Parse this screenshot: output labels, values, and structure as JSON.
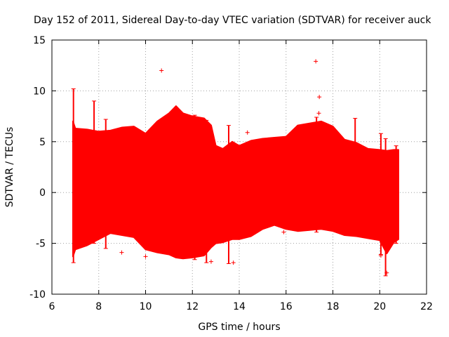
{
  "chart_data": {
    "type": "scatter",
    "title": "Day 152 of 2011, Sidereal Day-to-day VTEC variation (SDTVAR) for receiver auck",
    "xlabel": "GPS time / hours",
    "ylabel": "SDTVAR / TECUs",
    "xlim": [
      6,
      22
    ],
    "ylim": [
      -10,
      15
    ],
    "x_ticks": [
      6,
      8,
      10,
      12,
      14,
      16,
      18,
      20,
      22
    ],
    "y_ticks": [
      -10,
      -5,
      0,
      5,
      10,
      15
    ],
    "grid": true,
    "marker": "+",
    "color": "#ff0000",
    "envelope": {
      "x": [
        6.9,
        7.0,
        7.5,
        8.0,
        8.5,
        9.0,
        9.5,
        10.0,
        10.5,
        11.0,
        11.3,
        11.6,
        12.0,
        12.5,
        12.8,
        13.0,
        13.3,
        13.7,
        14.0,
        14.5,
        15.0,
        15.5,
        16.0,
        16.5,
        17.0,
        17.5,
        18.0,
        18.5,
        19.0,
        19.5,
        20.0,
        20.3,
        20.6,
        20.8
      ],
      "upper": [
        7.0,
        6.3,
        6.2,
        6.0,
        6.1,
        6.4,
        6.5,
        5.8,
        7.0,
        7.8,
        8.5,
        7.8,
        7.5,
        7.3,
        6.6,
        4.6,
        4.3,
        5.0,
        4.6,
        5.1,
        5.3,
        5.4,
        5.5,
        6.6,
        6.8,
        7.0,
        6.5,
        5.2,
        4.9,
        4.3,
        4.2,
        4.1,
        4.2,
        4.2
      ],
      "lower": [
        -6.3,
        -5.6,
        -5.2,
        -4.6,
        -4.0,
        -4.2,
        -4.4,
        -5.6,
        -5.9,
        -6.1,
        -6.4,
        -6.5,
        -6.4,
        -6.2,
        -5.4,
        -5.0,
        -4.9,
        -4.6,
        -4.6,
        -4.3,
        -3.6,
        -3.2,
        -3.6,
        -3.8,
        -3.7,
        -3.6,
        -3.8,
        -4.2,
        -4.3,
        -4.5,
        -4.7,
        -6.0,
        -4.9,
        -4.6
      ]
    },
    "spikes": [
      {
        "x": 6.92,
        "low": -6.9,
        "high": 10.2
      },
      {
        "x": 7.8,
        "low": -5.0,
        "high": 9.0
      },
      {
        "x": 8.3,
        "low": -5.5,
        "high": 7.2
      },
      {
        "x": 12.1,
        "low": -6.6,
        "high": 7.6
      },
      {
        "x": 12.6,
        "low": -6.9,
        "high": 7.1
      },
      {
        "x": 13.55,
        "low": -7.0,
        "high": 6.6
      },
      {
        "x": 17.3,
        "low": -3.9,
        "high": 7.4
      },
      {
        "x": 18.95,
        "low": -4.3,
        "high": 7.3
      },
      {
        "x": 20.05,
        "low": -6.1,
        "high": 5.8
      },
      {
        "x": 20.25,
        "low": -8.2,
        "high": 5.3
      },
      {
        "x": 20.7,
        "low": -5.0,
        "high": 4.6
      }
    ],
    "outliers": [
      {
        "x": 10.68,
        "y": 12.0
      },
      {
        "x": 17.27,
        "y": 12.9
      },
      {
        "x": 17.42,
        "y": 9.4
      },
      {
        "x": 17.4,
        "y": 7.8
      },
      {
        "x": 14.35,
        "y": 5.9
      },
      {
        "x": 8.98,
        "y": -5.9
      },
      {
        "x": 10.0,
        "y": -6.3
      },
      {
        "x": 12.8,
        "y": -6.8
      },
      {
        "x": 13.75,
        "y": -6.9
      },
      {
        "x": 15.9,
        "y": -3.9
      },
      {
        "x": 20.05,
        "y": -6.2
      },
      {
        "x": 20.3,
        "y": -7.9
      }
    ]
  }
}
